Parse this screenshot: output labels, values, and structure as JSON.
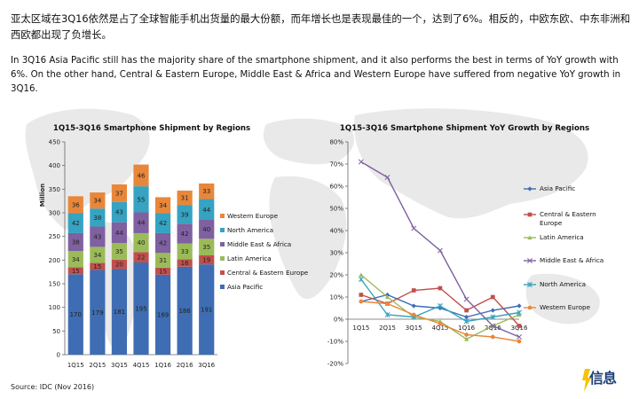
{
  "intro": {
    "zh": "亚太区域在3Q16依然是占了全球智能手机出货量的最大份额，而年增长也是表现最佳的一个，达到了6%。相反的，中欧东欧、中东非洲和西欧都出现了负增长。",
    "en": "In 3Q16 Asia Pacific still has the majority share of the smartphone shipment, and it also performs the best in terms of YoY growth with 6%. On the other hand, Central & Eastern Europe, Middle East & Africa and Western Europe have suffered from negative YoY growth in 3Q16."
  },
  "source": "Source: IDC (Nov 2016)",
  "logo": {
    "text": "信息",
    "icon": "lightning-bolt-icon",
    "color": "#f6c20a"
  },
  "chart_data": [
    {
      "type": "bar",
      "stacked": true,
      "title": "1Q15-3Q16 Smartphone Shipment by Regions",
      "ylabel": "Million",
      "xlabel": "",
      "ylim": [
        0,
        450
      ],
      "yticks": [
        0,
        50,
        100,
        150,
        200,
        250,
        300,
        350,
        400,
        450
      ],
      "categories": [
        "1Q15",
        "2Q15",
        "3Q15",
        "4Q15",
        "1Q16",
        "2Q16",
        "3Q16"
      ],
      "legend_position": "right",
      "series": [
        {
          "name": "Asia Pacific",
          "color": "#3e6db3",
          "values": [
            170,
            179,
            181,
            195,
            169,
            186,
            191
          ]
        },
        {
          "name": "Central & Eastern Europe",
          "color": "#c0504d",
          "values": [
            15,
            15,
            20,
            22,
            15,
            16,
            19
          ]
        },
        {
          "name": "Latin America",
          "color": "#9bbb59",
          "values": [
            34,
            34,
            35,
            40,
            31,
            33,
            35
          ]
        },
        {
          "name": "Middle East & Africa",
          "color": "#7f60a0",
          "values": [
            38,
            43,
            44,
            44,
            42,
            42,
            40
          ]
        },
        {
          "name": "North America",
          "color": "#35a3c1",
          "values": [
            42,
            38,
            43,
            55,
            42,
            39,
            44
          ]
        },
        {
          "name": "Western Europe",
          "color": "#e8873a",
          "values": [
            36,
            34,
            37,
            46,
            34,
            31,
            33
          ]
        }
      ],
      "totals_approx": [
        335,
        343,
        360,
        402,
        333,
        347,
        362
      ]
    },
    {
      "type": "line",
      "title": "1Q15-3Q16 Smartphone Shipment YoY Growth by Regions",
      "ylabel": "",
      "xlabel": "",
      "ylim": [
        -20,
        80
      ],
      "yticks": [
        -20,
        -10,
        0,
        10,
        20,
        30,
        40,
        50,
        60,
        70,
        80
      ],
      "y_format": "percent",
      "categories": [
        "1Q15",
        "2Q15",
        "3Q15",
        "4Q15",
        "1Q16",
        "2Q16",
        "3Q16"
      ],
      "legend_position": "right",
      "series": [
        {
          "name": "Asia Pacific",
          "color": "#3e6db3",
          "marker": "diamond",
          "values": [
            8,
            11,
            6,
            5,
            1,
            4,
            6
          ]
        },
        {
          "name": "Central & Eastern Europe",
          "color": "#c0504d",
          "marker": "square",
          "values": [
            11,
            7,
            13,
            14,
            4,
            10,
            -3
          ]
        },
        {
          "name": "Latin America",
          "color": "#9bbb59",
          "marker": "triangle",
          "values": [
            20,
            10,
            1,
            -1,
            -9,
            -3,
            2
          ]
        },
        {
          "name": "Middle East & Africa",
          "color": "#7f60a0",
          "marker": "x",
          "values": [
            71,
            64,
            41,
            31,
            9,
            -3,
            -8
          ]
        },
        {
          "name": "North America",
          "color": "#35a3c1",
          "marker": "star",
          "values": [
            18,
            2,
            1,
            6,
            -1,
            1,
            3
          ]
        },
        {
          "name": "Western Europe",
          "color": "#e8873a",
          "marker": "circle",
          "values": [
            8,
            7,
            2,
            -2,
            -7,
            -8,
            -10
          ]
        }
      ]
    }
  ]
}
